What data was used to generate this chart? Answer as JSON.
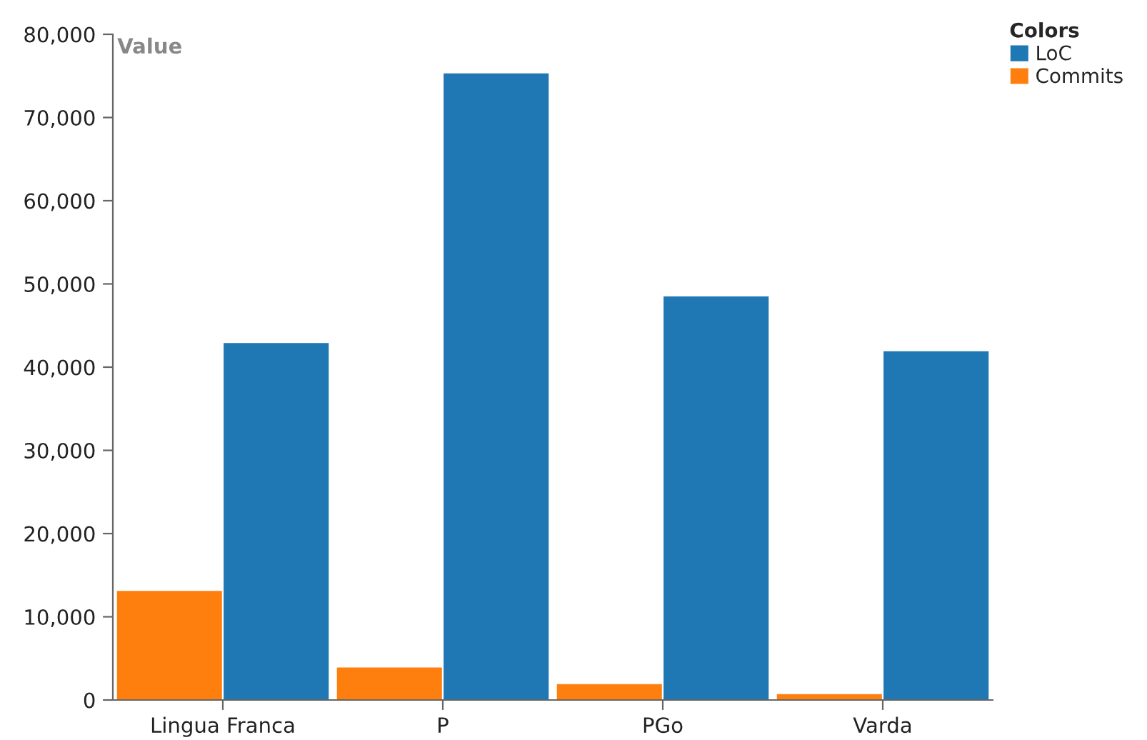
{
  "chart_data": {
    "type": "bar",
    "ylabel": "Value",
    "legend_title": "Colors",
    "categories": [
      "Lingua Franca",
      "P",
      "PGo",
      "Varda"
    ],
    "series": [
      {
        "name": "Commits",
        "color": "#ff7f0e",
        "values": [
          13200,
          4000,
          2000,
          800
        ]
      },
      {
        "name": "LoC",
        "color": "#1f77b4",
        "values": [
          43000,
          75400,
          48600,
          42000
        ]
      }
    ],
    "ylim": [
      0,
      80000
    ],
    "yticks": [
      {
        "value": 0,
        "label": "0"
      },
      {
        "value": 10000,
        "label": "10,000"
      },
      {
        "value": 20000,
        "label": "20,000"
      },
      {
        "value": 30000,
        "label": "30,000"
      },
      {
        "value": 40000,
        "label": "40,000"
      },
      {
        "value": 50000,
        "label": "50,000"
      },
      {
        "value": 60000,
        "label": "60,000"
      },
      {
        "value": 70000,
        "label": "70,000"
      },
      {
        "value": 80000,
        "label": "80,000"
      }
    ],
    "grid": false,
    "legend": "top right"
  }
}
